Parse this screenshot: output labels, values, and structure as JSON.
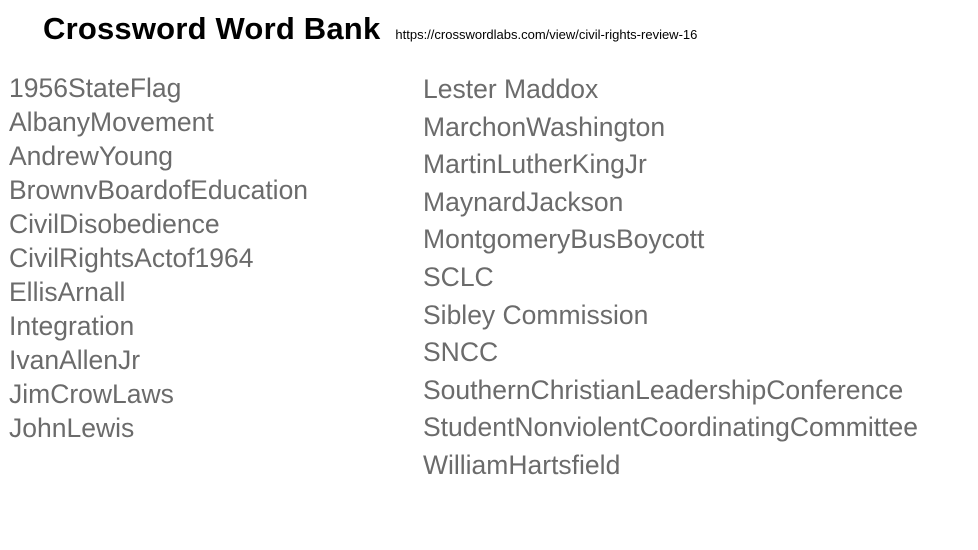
{
  "header": {
    "title": "Crossword Word Bank",
    "url": "https://crosswordlabs.com/view/civil-rights-review-16"
  },
  "word_bank": {
    "text_color": "#6b6b6b",
    "columns": [
      {
        "words": [
          "1956StateFlag",
          "AlbanyMovement",
          "AndrewYoung",
          "BrownvBoardofEducation",
          "CivilDisobedience",
          "CivilRightsActof1964",
          "EllisArnall",
          "Integration",
          "IvanAllenJr",
          "JimCrowLaws",
          "JohnLewis"
        ]
      },
      {
        "words": [
          "Lester Maddox",
          "MarchonWashington",
          "MartinLutherKingJr",
          "MaynardJackson",
          "MontgomeryBusBoycott",
          "SCLC",
          "Sibley Commission",
          "SNCC",
          "SouthernChristianLeadershipConference",
          "StudentNonviolentCoordinatingCommittee",
          "WilliamHartsfield"
        ]
      }
    ]
  }
}
